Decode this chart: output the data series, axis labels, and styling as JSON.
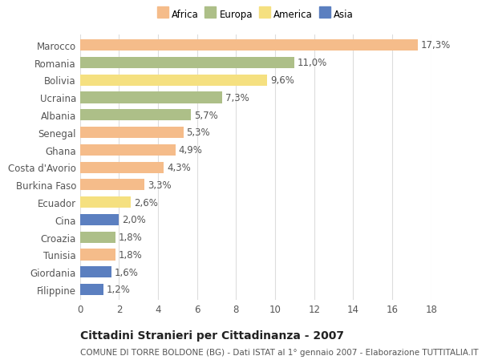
{
  "categories": [
    "Marocco",
    "Romania",
    "Bolivia",
    "Ucraina",
    "Albania",
    "Senegal",
    "Ghana",
    "Costa d'Avorio",
    "Burkina Faso",
    "Ecuador",
    "Cina",
    "Croazia",
    "Tunisia",
    "Giordania",
    "Filippine"
  ],
  "values": [
    17.3,
    11.0,
    9.6,
    7.3,
    5.7,
    5.3,
    4.9,
    4.3,
    3.3,
    2.6,
    2.0,
    1.8,
    1.8,
    1.6,
    1.2
  ],
  "labels": [
    "17,3%",
    "11,0%",
    "9,6%",
    "7,3%",
    "5,7%",
    "5,3%",
    "4,9%",
    "4,3%",
    "3,3%",
    "2,6%",
    "2,0%",
    "1,8%",
    "1,8%",
    "1,6%",
    "1,2%"
  ],
  "colors": [
    "#F5BC8A",
    "#ADBF88",
    "#F5E080",
    "#ADBF88",
    "#ADBF88",
    "#F5BC8A",
    "#F5BC8A",
    "#F5BC8A",
    "#F5BC8A",
    "#F5E080",
    "#5B7FC0",
    "#ADBF88",
    "#F5BC8A",
    "#5B7FC0",
    "#5B7FC0"
  ],
  "legend_labels": [
    "Africa",
    "Europa",
    "America",
    "Asia"
  ],
  "legend_colors": [
    "#F5BC8A",
    "#ADBF88",
    "#F5E080",
    "#5B7FC0"
  ],
  "title": "Cittadini Stranieri per Cittadinanza - 2007",
  "subtitle": "COMUNE DI TORRE BOLDONE (BG) - Dati ISTAT al 1° gennaio 2007 - Elaborazione TUTTITALIA.IT",
  "xlim": [
    0,
    18
  ],
  "xticks": [
    0,
    2,
    4,
    6,
    8,
    10,
    12,
    14,
    16,
    18
  ],
  "bar_height": 0.65,
  "bg_color": "#ffffff",
  "grid_color": "#dddddd",
  "label_fontsize": 8.5,
  "ytick_fontsize": 8.5,
  "xtick_fontsize": 8.5,
  "title_fontsize": 10,
  "subtitle_fontsize": 7.5
}
